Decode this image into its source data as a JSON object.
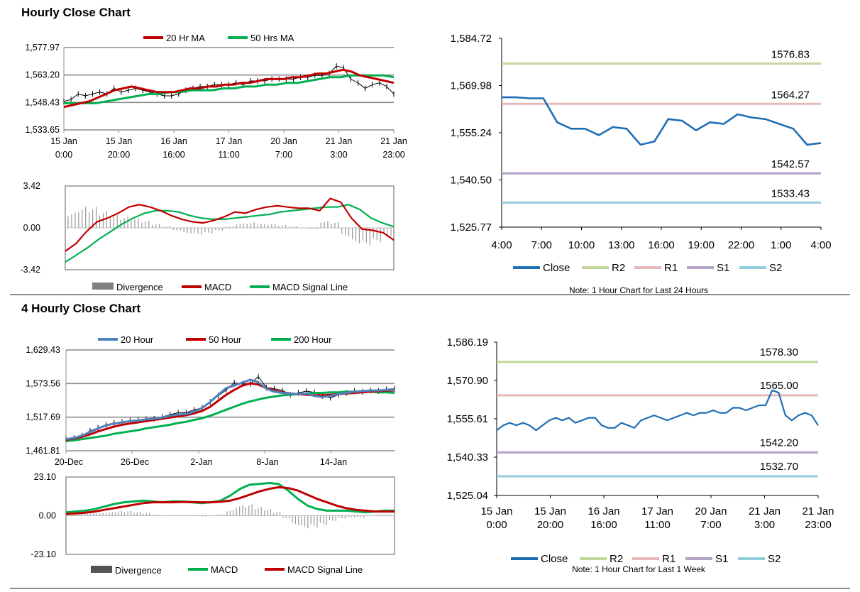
{
  "section1_title": "Hourly Close Chart",
  "section2_title": "4 Hourly Close Chart",
  "colors": {
    "red": "#c00000",
    "green": "#00b050",
    "blue": "#4f81bd",
    "close": "#1f6eb4",
    "r2": "#c3d69b",
    "r1": "#e6b9b8",
    "s1": "#b3a2c7",
    "s2": "#93cddd",
    "grey": "#808080",
    "grid": "#8c8c8c"
  },
  "chart_data": [
    {
      "id": "hourly_price",
      "type": "line",
      "title": "",
      "legend": [
        "20 Hr MA",
        "50 Hrs MA"
      ],
      "yticks": [
        "1,577.97",
        "1,563.20",
        "1,548.43",
        "1,533.65"
      ],
      "ylim": [
        1533.65,
        1577.97
      ],
      "xticks": [
        [
          "15 Jan",
          "0:00"
        ],
        [
          "15 Jan",
          "20:00"
        ],
        [
          "16 Jan",
          "16:00"
        ],
        [
          "17 Jan",
          "11:00"
        ],
        [
          "20 Jan",
          "7:00"
        ],
        [
          "21 Jan",
          "3:00"
        ],
        [
          "21 Jan",
          "23:00"
        ]
      ],
      "close": [
        1549,
        1550,
        1553,
        1552,
        1553,
        1554,
        1553,
        1556,
        1554,
        1555,
        1556,
        1555,
        1554,
        1553,
        1552,
        1552,
        1553,
        1555,
        1556,
        1557,
        1557,
        1558,
        1558,
        1558,
        1559,
        1558,
        1560,
        1560,
        1560,
        1561,
        1561,
        1561,
        1561,
        1562,
        1562,
        1563,
        1563,
        1564,
        1568,
        1567,
        1561,
        1559,
        1556,
        1558,
        1559,
        1557,
        1553
      ],
      "ma20": [
        1546,
        1547,
        1548,
        1549,
        1551,
        1553,
        1555,
        1556,
        1557,
        1556,
        1555,
        1554,
        1554,
        1554,
        1555,
        1556,
        1556,
        1557,
        1557,
        1558,
        1558,
        1559,
        1559,
        1560,
        1561,
        1561,
        1561,
        1562,
        1562,
        1563,
        1564,
        1564,
        1565,
        1566,
        1565,
        1563,
        1562,
        1561,
        1560,
        1559
      ],
      "ma50": [
        1548,
        1548,
        1548,
        1548,
        1549,
        1550,
        1551,
        1552,
        1553,
        1553,
        1554,
        1554,
        1555,
        1555,
        1555,
        1556,
        1556,
        1557,
        1557,
        1558,
        1558,
        1559,
        1559,
        1560,
        1561,
        1562,
        1562,
        1563,
        1563,
        1563,
        1563,
        1562
      ],
      "series_names": [
        "Close",
        "20 Hr MA",
        "50 Hrs MA"
      ]
    },
    {
      "id": "hourly_macd",
      "type": "line",
      "legend": [
        "Divergence",
        "MACD",
        "MACD Signal Line"
      ],
      "yticks": [
        "3.42",
        "0.00",
        "-3.42"
      ],
      "ylim": [
        -3.42,
        3.42
      ],
      "macd": [
        -1.9,
        -1.3,
        -0.3,
        0.5,
        0.8,
        1.2,
        1.7,
        1.9,
        1.7,
        1.4,
        1.0,
        0.7,
        0.5,
        0.4,
        0.6,
        0.9,
        1.3,
        1.2,
        1.5,
        1.7,
        1.8,
        1.7,
        1.6,
        1.6,
        1.4,
        2.4,
        2.1,
        0.8,
        -0.1,
        -0.2,
        -0.4,
        -1.0
      ],
      "signal": [
        -2.8,
        -2.2,
        -1.6,
        -0.9,
        -0.3,
        0.3,
        0.8,
        1.2,
        1.4,
        1.4,
        1.3,
        1.0,
        0.8,
        0.7,
        0.7,
        0.8,
        0.9,
        1.0,
        1.1,
        1.3,
        1.4,
        1.5,
        1.6,
        1.7,
        1.7,
        1.9,
        1.5,
        0.8,
        0.4,
        0.1
      ],
      "divergence": [
        1.1,
        1.5,
        1.5,
        1.2,
        0.9,
        0.8,
        0.7,
        0.5,
        0.3,
        0.1,
        -0.2,
        -0.4,
        -0.5,
        -0.4,
        -0.2,
        0.1,
        0.3,
        0.4,
        0.3,
        0.3,
        0.2,
        0.1,
        0.0,
        -0.1,
        0.5,
        0.4,
        -0.6,
        -1.1,
        -1.2,
        -1.0,
        -0.6
      ]
    },
    {
      "id": "hourly_close_24h",
      "type": "line",
      "yticks": [
        "1,584.72",
        "1,569.98",
        "1,555.24",
        "1,540.50",
        "1,525.77"
      ],
      "ylim": [
        1525.77,
        1584.72
      ],
      "xticks": [
        "4:00",
        "7:00",
        "10:00",
        "13:00",
        "16:00",
        "19:00",
        "22:00",
        "1:00",
        "4:00"
      ],
      "close": [
        1566.3,
        1566.3,
        1566.0,
        1566.0,
        1558.5,
        1556.5,
        1556.5,
        1554.5,
        1557.0,
        1556.5,
        1551.5,
        1552.5,
        1559.5,
        1559.0,
        1556.0,
        1558.5,
        1558.0,
        1561.0,
        1560.0,
        1559.5,
        1558.0,
        1556.5,
        1551.5,
        1552.0
      ],
      "levels": {
        "R2": 1576.83,
        "R1": 1564.27,
        "S1": 1542.57,
        "S2": 1533.43
      },
      "level_labels": [
        "1576.83",
        "1564.27",
        "1542.57",
        "1533.43"
      ],
      "legend": [
        "Close",
        "R2",
        "R1",
        "S1",
        "S2"
      ],
      "note": "Note: 1 Hour Chart for Last 24 Hours"
    },
    {
      "id": "4hourly_price",
      "type": "line",
      "legend": [
        "20 Hour",
        "50 Hour",
        "200 Hour"
      ],
      "yticks": [
        "1,629.43",
        "1,573.56",
        "1,517.69",
        "1,461.81"
      ],
      "ylim": [
        1461.81,
        1629.43
      ],
      "xticks": [
        "20-Dec",
        "26-Dec",
        "2-Jan",
        "8-Jan",
        "14-Jan"
      ],
      "close": [
        1481,
        1483,
        1487,
        1495,
        1500,
        1505,
        1508,
        1510,
        1512,
        1513,
        1514,
        1515,
        1518,
        1522,
        1525,
        1525,
        1530,
        1533,
        1543,
        1553,
        1563,
        1575,
        1573,
        1573,
        1585,
        1567,
        1565,
        1562,
        1555,
        1558,
        1561,
        1559,
        1553,
        1550,
        1555,
        1558,
        1561,
        1560,
        1562,
        1561,
        1564,
        1565
      ],
      "ma20": [
        1481,
        1483,
        1487,
        1493,
        1499,
        1504,
        1507,
        1509,
        1511,
        1512,
        1514,
        1515,
        1517,
        1520,
        1522,
        1523,
        1527,
        1533,
        1543,
        1555,
        1566,
        1570,
        1575,
        1580,
        1576,
        1565,
        1560,
        1558,
        1557,
        1556,
        1557,
        1553,
        1551,
        1553,
        1556,
        1558,
        1560,
        1561,
        1562,
        1562,
        1563,
        1563
      ],
      "ma50": [
        1480,
        1482,
        1485,
        1489,
        1494,
        1498,
        1502,
        1505,
        1507,
        1509,
        1511,
        1513,
        1515,
        1517,
        1519,
        1521,
        1524,
        1528,
        1535,
        1545,
        1555,
        1563,
        1570,
        1574,
        1572,
        1566,
        1562,
        1559,
        1557,
        1556,
        1555,
        1554,
        1554,
        1555,
        1556,
        1557,
        1558,
        1559,
        1560,
        1561,
        1562,
        1562
      ],
      "ma200": [
        1478,
        1479,
        1481,
        1483,
        1485,
        1487,
        1490,
        1492,
        1494,
        1496,
        1499,
        1501,
        1503,
        1505,
        1508,
        1510,
        1513,
        1516,
        1520,
        1525,
        1530,
        1535,
        1540,
        1544,
        1547,
        1550,
        1552,
        1554,
        1555,
        1556,
        1557,
        1558,
        1558,
        1559,
        1559,
        1560,
        1560,
        1560,
        1560,
        1559,
        1559,
        1558
      ],
      "series_names": [
        "Close",
        "20 Hour",
        "50 Hour",
        "200 Hour"
      ]
    },
    {
      "id": "4hourly_macd",
      "type": "line",
      "legend": [
        "Divergence",
        "MACD",
        "MACD Signal Line"
      ],
      "yticks": [
        "23.10",
        "0.00",
        "-23.10"
      ],
      "ylim": [
        -23.1,
        23.1
      ],
      "macd": [
        2,
        2.5,
        3,
        4,
        5.5,
        7,
        8,
        8.5,
        9,
        8.5,
        8,
        8.5,
        8.5,
        8,
        7.5,
        8,
        9,
        12,
        16,
        18.5,
        19,
        19.5,
        19,
        15,
        10,
        6,
        4,
        3,
        3,
        3,
        2.5,
        2,
        2.5,
        3,
        3
      ],
      "signal": [
        1,
        1.3,
        1.8,
        2.5,
        3.5,
        4.5,
        5.5,
        6.5,
        7.5,
        8,
        8,
        8,
        8.2,
        8.2,
        8,
        8,
        8.3,
        9,
        10.5,
        12.5,
        14.5,
        16,
        17,
        16.5,
        15,
        12.5,
        10,
        8,
        6,
        4.5,
        3.5,
        3,
        2.5,
        2.5,
        2.5
      ],
      "divergence": [
        1,
        1.2,
        1.2,
        1.5,
        2,
        2.5,
        2.5,
        2,
        1.5,
        0.5,
        0,
        0.5,
        0.3,
        -0.2,
        -0.5,
        0,
        0.7,
        3,
        5.5,
        6,
        4.5,
        3.5,
        2,
        -1.5,
        -5,
        -6.5,
        -6,
        -5,
        -3,
        -1.5,
        -1,
        -1,
        0,
        0.5,
        0.5
      ]
    },
    {
      "id": "4hourly_close_week",
      "type": "line",
      "yticks": [
        "1,586.19",
        "1,570.90",
        "1,555.61",
        "1,540.33",
        "1,525.04"
      ],
      "ylim": [
        1525.04,
        1586.19
      ],
      "xticks": [
        [
          "15 Jan",
          "0:00"
        ],
        [
          "15 Jan",
          "20:00"
        ],
        [
          "16 Jan",
          "16:00"
        ],
        [
          "17 Jan",
          "11:00"
        ],
        [
          "20 Jan",
          "7:00"
        ],
        [
          "21 Jan",
          "3:00"
        ],
        [
          "21 Jan",
          "23:00"
        ]
      ],
      "close": [
        1551,
        1553,
        1554,
        1553,
        1554,
        1553,
        1551,
        1553,
        1555,
        1556,
        1555,
        1556,
        1554,
        1555,
        1556,
        1556,
        1553,
        1552,
        1552,
        1554,
        1553,
        1552,
        1555,
        1556,
        1557,
        1556,
        1555,
        1556,
        1557,
        1558,
        1557,
        1558,
        1558,
        1559,
        1558,
        1558,
        1560,
        1560,
        1559,
        1560,
        1561,
        1561,
        1567,
        1566,
        1557,
        1555,
        1557,
        1558,
        1557,
        1553
      ],
      "levels": {
        "R2": 1578.3,
        "R1": 1565.0,
        "S1": 1542.2,
        "S2": 1532.7
      },
      "level_labels": [
        "1578.30",
        "1565.00",
        "1542.20",
        "1532.70"
      ],
      "legend": [
        "Close",
        "R2",
        "R1",
        "S1",
        "S2"
      ],
      "note": "Note: 1 Hour Chart for Last 1 Week"
    }
  ]
}
